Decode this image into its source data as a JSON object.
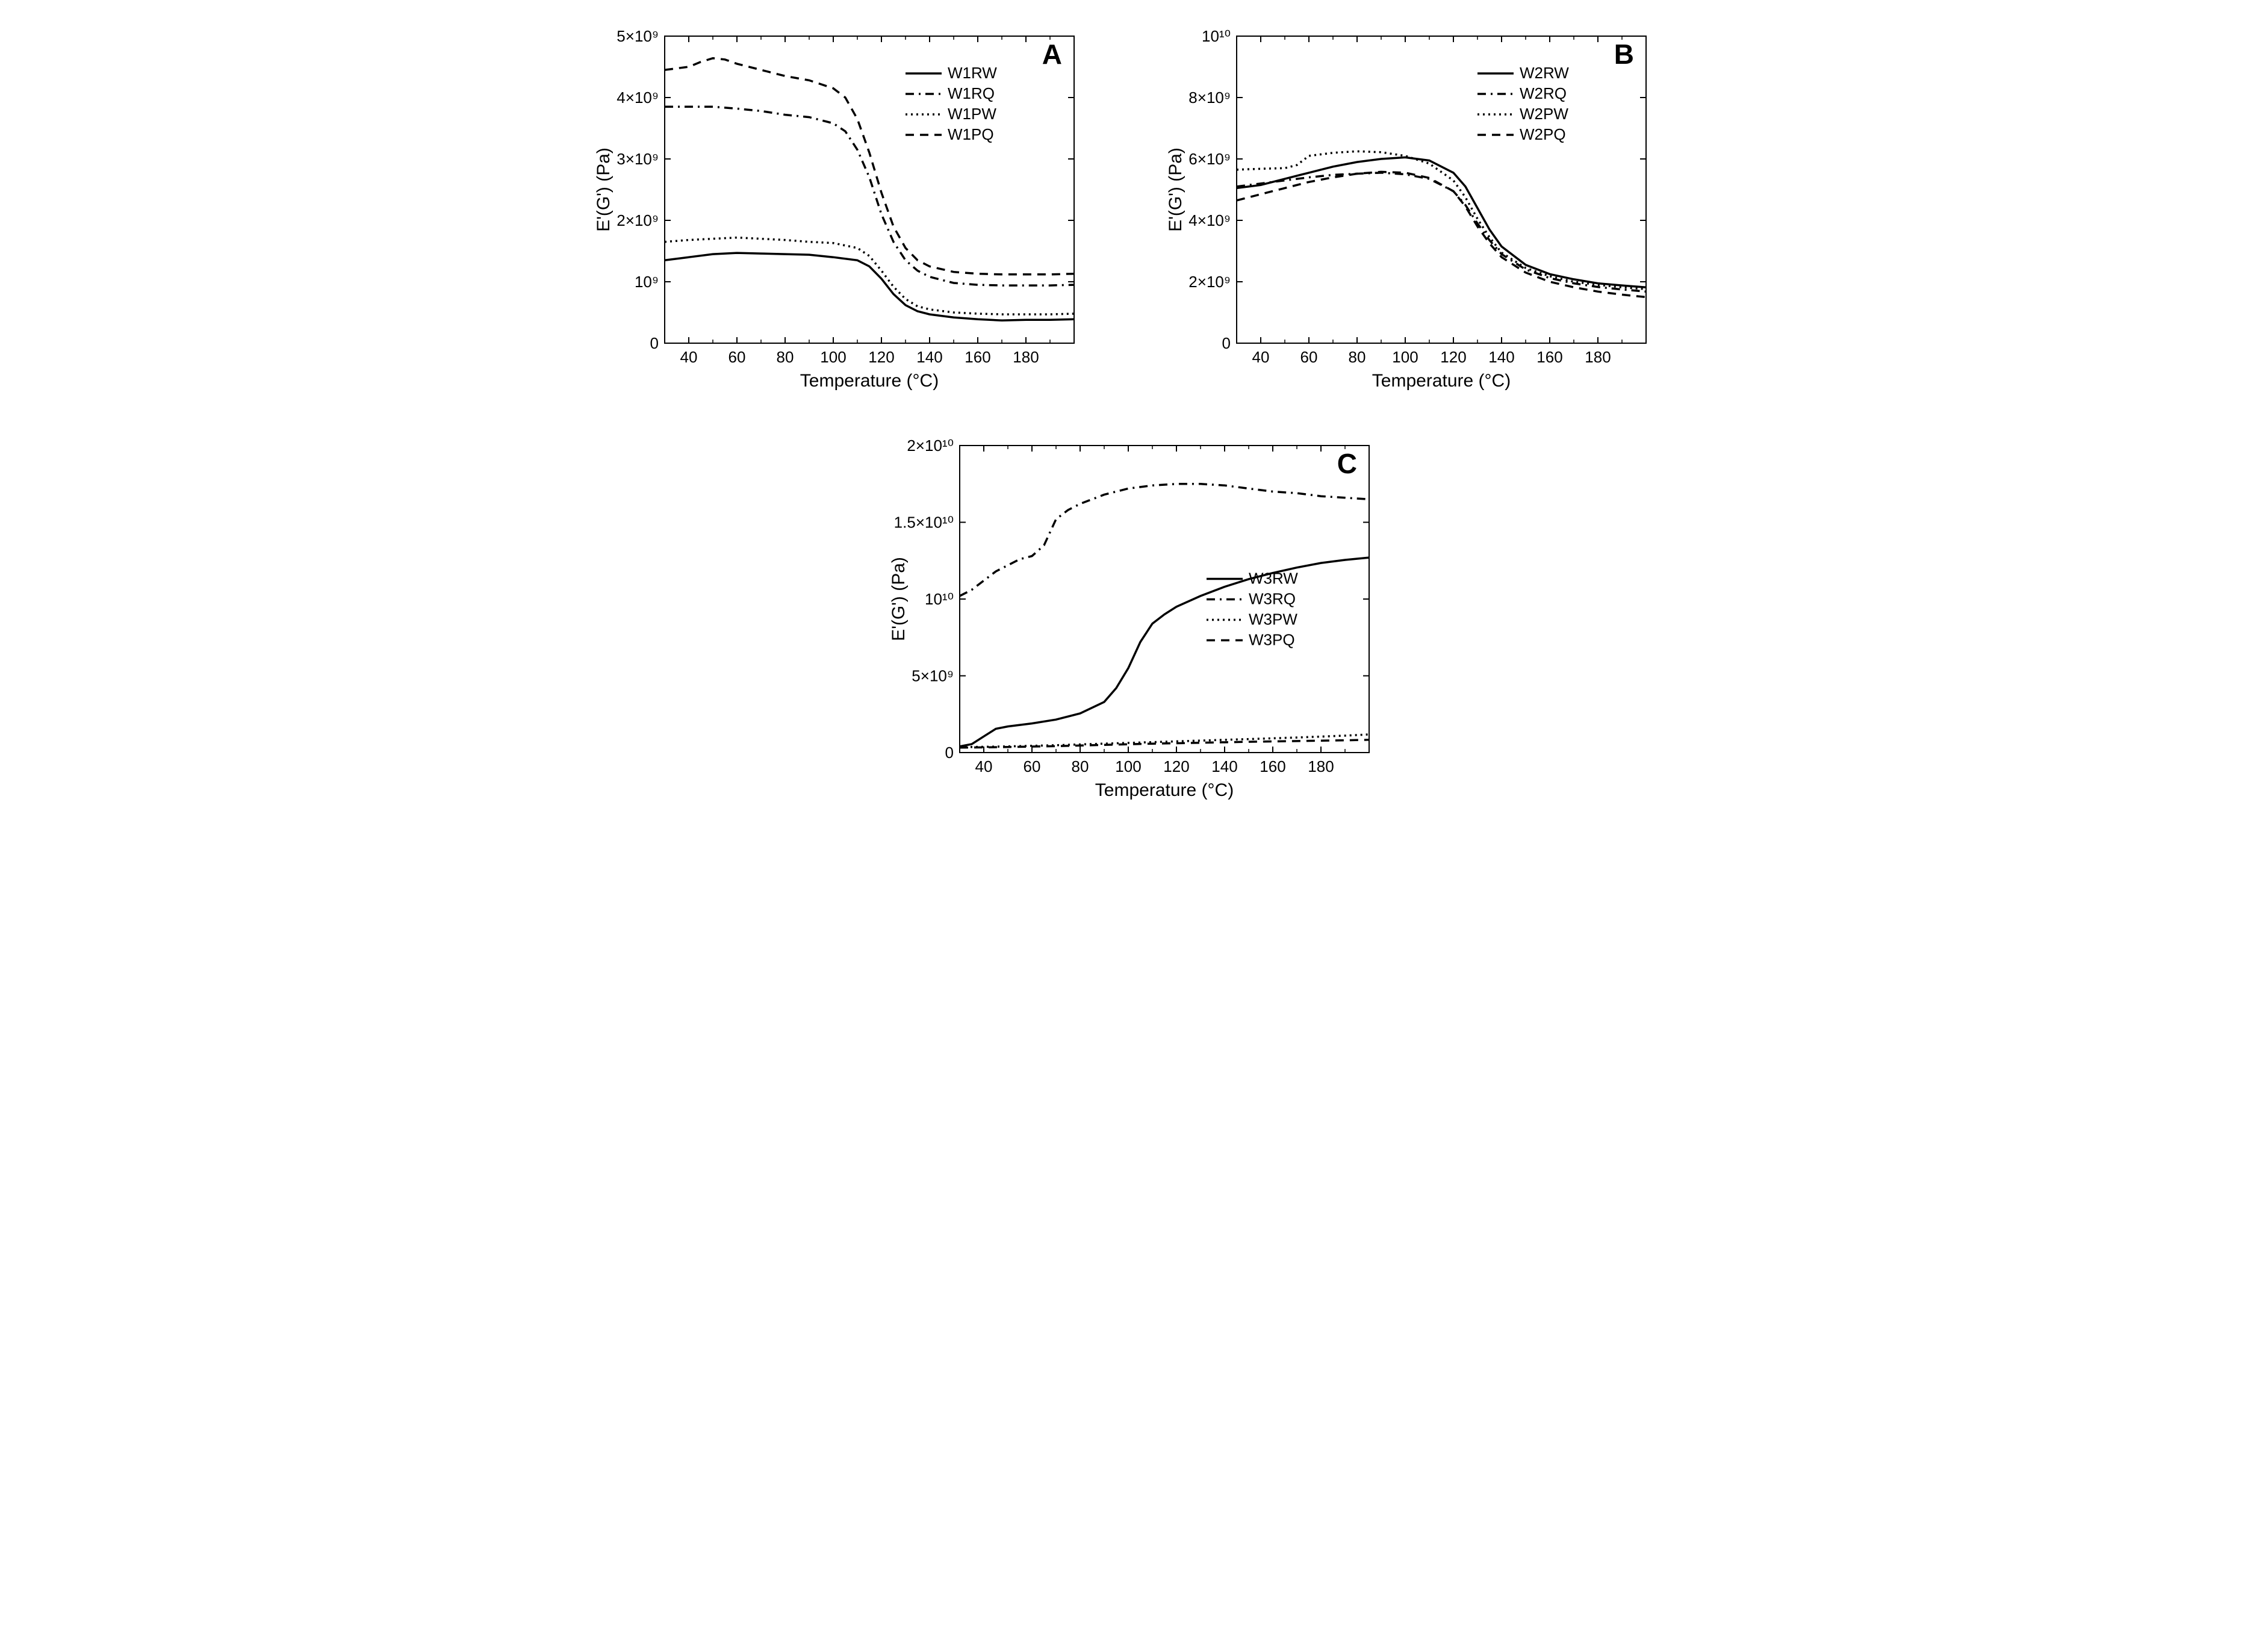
{
  "figure": {
    "background_color": "#ffffff",
    "line_color": "#000000",
    "text_color": "#000000",
    "font_family": "Arial, Helvetica, sans-serif",
    "axis_label_fontsize": 30,
    "tick_label_fontsize": 26,
    "panel_tag_fontsize": 46,
    "legend_fontsize": 26,
    "axis_stroke_width": 2,
    "series_stroke_width": 3.5
  },
  "panels": {
    "A": {
      "tag": "A",
      "type": "line",
      "xlabel": "Temperature (°C)",
      "ylabel": "E'(G') (Pa)",
      "xlim": [
        30,
        200
      ],
      "ylim": [
        0,
        5000000000.0
      ],
      "xticks": [
        40,
        60,
        80,
        100,
        120,
        140,
        160,
        180
      ],
      "yticks": [
        0,
        1000000000.0,
        2000000000.0,
        3000000000.0,
        4000000000.0,
        5000000000.0
      ],
      "ytick_labels": [
        "0",
        "10⁹",
        "2×10⁹",
        "3×10⁹",
        "4×10⁹",
        "5×10⁹"
      ],
      "legend_pos": "top-right",
      "series": [
        {
          "name": "W1RW",
          "dash": "solid",
          "x": [
            30,
            40,
            50,
            60,
            70,
            80,
            90,
            100,
            110,
            115,
            120,
            125,
            130,
            135,
            140,
            150,
            160,
            170,
            180,
            190,
            200
          ],
          "y": [
            1350000000.0,
            1400000000.0,
            1450000000.0,
            1470000000.0,
            1460000000.0,
            1450000000.0,
            1440000000.0,
            1400000000.0,
            1350000000.0,
            1250000000.0,
            1050000000.0,
            800000000.0,
            620000000.0,
            520000000.0,
            470000000.0,
            420000000.0,
            390000000.0,
            370000000.0,
            380000000.0,
            380000000.0,
            390000000.0
          ]
        },
        {
          "name": "W1RQ",
          "dash": "dashdot",
          "x": [
            30,
            40,
            50,
            60,
            70,
            80,
            90,
            100,
            105,
            110,
            115,
            120,
            125,
            130,
            135,
            140,
            150,
            160,
            170,
            180,
            190,
            200
          ],
          "y": [
            3850000000.0,
            3850000000.0,
            3850000000.0,
            3820000000.0,
            3780000000.0,
            3720000000.0,
            3680000000.0,
            3580000000.0,
            3450000000.0,
            3150000000.0,
            2700000000.0,
            2100000000.0,
            1650000000.0,
            1350000000.0,
            1180000000.0,
            1080000000.0,
            980000000.0,
            950000000.0,
            940000000.0,
            940000000.0,
            940000000.0,
            950000000.0
          ]
        },
        {
          "name": "W1PW",
          "dash": "dot",
          "x": [
            30,
            40,
            50,
            60,
            70,
            80,
            90,
            100,
            110,
            115,
            120,
            125,
            130,
            135,
            140,
            150,
            160,
            170,
            180,
            190,
            200
          ],
          "y": [
            1650000000.0,
            1680000000.0,
            1700000000.0,
            1720000000.0,
            1700000000.0,
            1680000000.0,
            1650000000.0,
            1630000000.0,
            1550000000.0,
            1420000000.0,
            1180000000.0,
            920000000.0,
            720000000.0,
            600000000.0,
            550000000.0,
            500000000.0,
            480000000.0,
            470000000.0,
            470000000.0,
            470000000.0,
            480000000.0
          ]
        },
        {
          "name": "W1PQ",
          "dash": "dash",
          "x": [
            30,
            40,
            45,
            50,
            55,
            60,
            70,
            80,
            90,
            100,
            105,
            110,
            115,
            120,
            125,
            130,
            135,
            140,
            150,
            160,
            170,
            180,
            190,
            200
          ],
          "y": [
            4450000000.0,
            4500000000.0,
            4580000000.0,
            4640000000.0,
            4620000000.0,
            4550000000.0,
            4450000000.0,
            4350000000.0,
            4280000000.0,
            4150000000.0,
            4000000000.0,
            3650000000.0,
            3100000000.0,
            2450000000.0,
            1900000000.0,
            1550000000.0,
            1350000000.0,
            1250000000.0,
            1160000000.0,
            1130000000.0,
            1120000000.0,
            1120000000.0,
            1120000000.0,
            1130000000.0
          ]
        }
      ]
    },
    "B": {
      "tag": "B",
      "type": "line",
      "xlabel": "Temperature (°C)",
      "ylabel": "E'(G') (Pa)",
      "xlim": [
        30,
        200
      ],
      "ylim": [
        0,
        10000000000.0
      ],
      "xticks": [
        40,
        60,
        80,
        100,
        120,
        140,
        160,
        180
      ],
      "yticks": [
        0,
        2000000000.0,
        4000000000.0,
        6000000000.0,
        8000000000.0,
        10000000000.0
      ],
      "ytick_labels": [
        "0",
        "2×10⁹",
        "4×10⁹",
        "6×10⁹",
        "8×10⁹",
        "10¹⁰"
      ],
      "legend_pos": "top-right",
      "series": [
        {
          "name": "W2RW",
          "dash": "solid",
          "x": [
            30,
            40,
            50,
            60,
            70,
            80,
            90,
            100,
            110,
            120,
            125,
            130,
            135,
            140,
            150,
            160,
            170,
            180,
            190,
            200
          ],
          "y": [
            5050000000.0,
            5150000000.0,
            5350000000.0,
            5550000000.0,
            5750000000.0,
            5900000000.0,
            6000000000.0,
            6050000000.0,
            5950000000.0,
            5550000000.0,
            5100000000.0,
            4400000000.0,
            3700000000.0,
            3150000000.0,
            2550000000.0,
            2250000000.0,
            2080000000.0,
            1950000000.0,
            1880000000.0,
            1820000000.0
          ]
        },
        {
          "name": "W2RQ",
          "dash": "dashdot",
          "x": [
            30,
            40,
            50,
            60,
            70,
            80,
            90,
            100,
            110,
            120,
            125,
            130,
            135,
            140,
            150,
            160,
            170,
            180,
            190,
            200
          ],
          "y": [
            5100000000.0,
            5200000000.0,
            5300000000.0,
            5400000000.0,
            5480000000.0,
            5520000000.0,
            5550000000.0,
            5500000000.0,
            5350000000.0,
            4950000000.0,
            4500000000.0,
            3900000000.0,
            3350000000.0,
            2900000000.0,
            2400000000.0,
            2120000000.0,
            1950000000.0,
            1830000000.0,
            1750000000.0,
            1680000000.0
          ]
        },
        {
          "name": "W2PW",
          "dash": "dot",
          "x": [
            30,
            40,
            50,
            55,
            60,
            70,
            80,
            90,
            100,
            110,
            120,
            125,
            130,
            135,
            140,
            150,
            160,
            170,
            180,
            190,
            200
          ],
          "y": [
            5650000000.0,
            5680000000.0,
            5700000000.0,
            5800000000.0,
            6100000000.0,
            6200000000.0,
            6250000000.0,
            6220000000.0,
            6100000000.0,
            5850000000.0,
            5300000000.0,
            4750000000.0,
            4050000000.0,
            3450000000.0,
            2950000000.0,
            2450000000.0,
            2180000000.0,
            2000000000.0,
            1900000000.0,
            1820000000.0,
            1760000000.0
          ]
        },
        {
          "name": "W2PQ",
          "dash": "dash",
          "x": [
            30,
            40,
            50,
            60,
            70,
            80,
            90,
            100,
            110,
            120,
            125,
            130,
            135,
            140,
            150,
            160,
            170,
            180,
            190,
            200
          ],
          "y": [
            4650000000.0,
            4850000000.0,
            5050000000.0,
            5250000000.0,
            5400000000.0,
            5520000000.0,
            5580000000.0,
            5550000000.0,
            5380000000.0,
            4950000000.0,
            4450000000.0,
            3800000000.0,
            3250000000.0,
            2800000000.0,
            2300000000.0,
            2000000000.0,
            1820000000.0,
            1680000000.0,
            1580000000.0,
            1500000000.0
          ]
        }
      ]
    },
    "C": {
      "tag": "C",
      "type": "line",
      "xlabel": "Temperature (°C)",
      "ylabel": "E'(G') (Pa)",
      "xlim": [
        30,
        200
      ],
      "ylim": [
        0,
        20000000000.0
      ],
      "xticks": [
        40,
        60,
        80,
        100,
        120,
        140,
        160,
        180
      ],
      "yticks": [
        0,
        5000000000.0,
        10000000000.0,
        15000000000.0,
        20000000000.0
      ],
      "ytick_labels": [
        "0",
        "5×10⁹",
        "10¹⁰",
        "1.5×10¹⁰",
        "2×10¹⁰"
      ],
      "legend_pos": "mid-right",
      "series": [
        {
          "name": "W3RW",
          "dash": "solid",
          "x": [
            30,
            35,
            40,
            45,
            50,
            60,
            70,
            80,
            90,
            95,
            100,
            105,
            110,
            115,
            120,
            130,
            140,
            150,
            160,
            170,
            180,
            190,
            200
          ],
          "y": [
            400000000.0,
            550000000.0,
            1050000000.0,
            1550000000.0,
            1700000000.0,
            1900000000.0,
            2150000000.0,
            2550000000.0,
            3300000000.0,
            4200000000.0,
            5500000000.0,
            7200000000.0,
            8400000000.0,
            9000000000.0,
            9500000000.0,
            10200000000.0,
            10800000000.0,
            11300000000.0,
            11700000000.0,
            12050000000.0,
            12350000000.0,
            12550000000.0,
            12700000000.0
          ]
        },
        {
          "name": "W3RQ",
          "dash": "dashdot",
          "x": [
            30,
            35,
            40,
            45,
            50,
            55,
            60,
            65,
            70,
            75,
            80,
            90,
            100,
            110,
            120,
            130,
            140,
            150,
            160,
            170,
            180,
            190,
            200
          ],
          "y": [
            10200000000.0,
            10600000000.0,
            11200000000.0,
            11800000000.0,
            12200000000.0,
            12600000000.0,
            12800000000.0,
            13500000000.0,
            15200000000.0,
            15800000000.0,
            16200000000.0,
            16800000000.0,
            17200000000.0,
            17400000000.0,
            17500000000.0,
            17500000000.0,
            17400000000.0,
            17200000000.0,
            17000000000.0,
            16900000000.0,
            16700000000.0,
            16600000000.0,
            16500000000.0
          ]
        },
        {
          "name": "W3PW",
          "dash": "dot",
          "x": [
            30,
            50,
            70,
            90,
            110,
            130,
            150,
            170,
            190,
            200
          ],
          "y": [
            350000000.0,
            400000000.0,
            480000000.0,
            580000000.0,
            680000000.0,
            780000000.0,
            880000000.0,
            980000000.0,
            1100000000.0,
            1180000000.0
          ]
        },
        {
          "name": "W3PQ",
          "dash": "dash",
          "x": [
            30,
            50,
            70,
            90,
            110,
            130,
            150,
            170,
            190,
            200
          ],
          "y": [
            320000000.0,
            360000000.0,
            420000000.0,
            500000000.0,
            580000000.0,
            640000000.0,
            700000000.0,
            750000000.0,
            800000000.0,
            830000000.0
          ]
        }
      ]
    }
  },
  "dash_patterns": {
    "solid": "",
    "dash": "14 10",
    "dot": "3 6",
    "dashdot": "14 8 3 8"
  }
}
